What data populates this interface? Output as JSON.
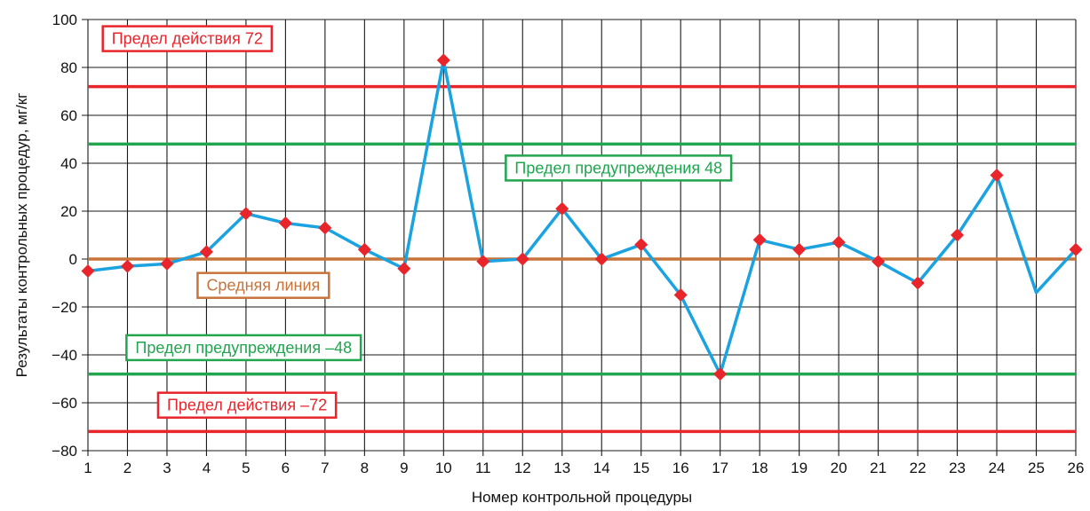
{
  "chart_data": {
    "type": "line",
    "xlabel": "Номер контрольной процедуры",
    "ylabel": "Результаты контрольных процедур, мг/кг",
    "xlim": [
      1,
      26
    ],
    "ylim": [
      -80,
      100
    ],
    "x_ticks": [
      1,
      2,
      3,
      4,
      5,
      6,
      7,
      8,
      9,
      10,
      11,
      12,
      13,
      14,
      15,
      16,
      17,
      18,
      19,
      20,
      21,
      22,
      23,
      24,
      25,
      26
    ],
    "y_ticks": [
      -80,
      -60,
      -40,
      -20,
      0,
      20,
      40,
      60,
      80,
      100
    ],
    "grid": true,
    "series": [
      {
        "x": [
          1,
          2,
          3,
          4,
          5,
          6,
          7,
          8,
          9,
          10,
          11,
          12,
          13,
          14,
          15,
          16,
          17,
          18,
          19,
          20,
          21,
          22,
          23,
          24,
          25,
          26
        ],
        "y": [
          -5,
          -3,
          -2,
          3,
          19,
          15,
          13,
          4,
          -4,
          83,
          -1,
          0,
          21,
          0,
          6,
          -15,
          -48,
          8,
          4,
          7,
          -1,
          -10,
          10,
          35,
          -14,
          4
        ],
        "markers_at": [
          1,
          2,
          3,
          4,
          5,
          6,
          7,
          8,
          9,
          10,
          11,
          12,
          13,
          14,
          15,
          16,
          17,
          18,
          19,
          20,
          21,
          22,
          23,
          24,
          26
        ],
        "color": "#1aa3e0",
        "marker_color": "#e8252b"
      }
    ],
    "limit_lines": [
      {
        "value": 72,
        "label": "Предел действия 72",
        "color": "#e8252b",
        "label_near_x": 1.6
      },
      {
        "value": 48,
        "label": "Предел предупреждения 48",
        "color": "#21a54f",
        "label_near_x": 11.8
      },
      {
        "value": 0,
        "label": "Средняя линия",
        "color": "#c8733a",
        "label_near_x": 4.0
      },
      {
        "value": -48,
        "label": "Предел предупреждения –48",
        "color": "#21a54f",
        "label_near_x": 2.2
      },
      {
        "value": -72,
        "label": "Предел действия –72",
        "color": "#e8252b",
        "label_near_x": 3.0
      }
    ],
    "label_positions": [
      92,
      38,
      -11,
      -37,
      -61
    ]
  }
}
